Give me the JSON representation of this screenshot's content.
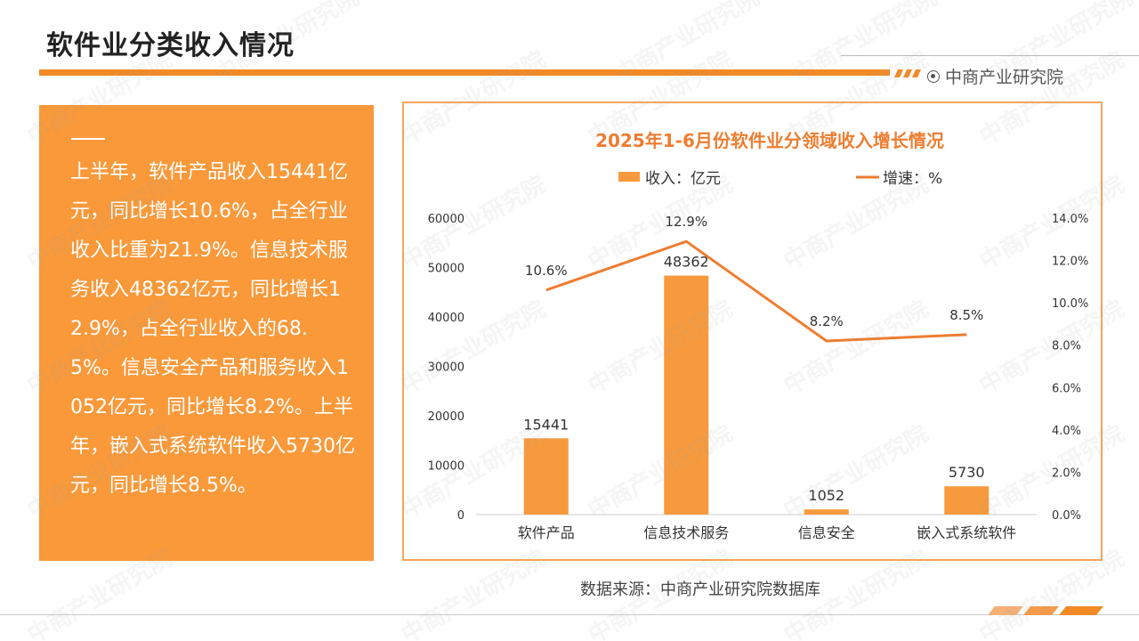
{
  "header": {
    "title": "软件业分类收入情况",
    "brand": "中商产业研究院"
  },
  "panel": {
    "text": "上半年，软件产品收入15441亿元，同比增长10.6%，占全行业收入比重为21.9%。信息技术服务收入48362亿元，同比增长12.9%，占全行业收入的68.5%。信息安全产品和服务收入1052亿元，同比增长8.2%。上半年，嵌入式系统软件收入5730亿元，同比增长8.5%。"
  },
  "footer": {
    "source": "数据来源：中商产业研究院数据库"
  },
  "watermark": "中商产业研究院",
  "colors": {
    "accent": "#f28a26",
    "panel": "#f9993a",
    "bar": "#f79a3e",
    "line": "#ee7d31",
    "title": "#ee7d31"
  },
  "chart_data": {
    "type": "bar+line",
    "title": "2025年1-6月份软件业分领域收入增长情况",
    "categories": [
      "软件产品",
      "信息技术服务",
      "信息安全",
      "嵌入式系统软件"
    ],
    "series": [
      {
        "name": "收入：亿元",
        "type": "bar",
        "axis": "left",
        "values": [
          15441,
          48362,
          1052,
          5730
        ],
        "labels": [
          "15441",
          "48362",
          "1052",
          "5730"
        ]
      },
      {
        "name": "增速：%",
        "type": "line",
        "axis": "right",
        "values": [
          10.6,
          12.9,
          8.2,
          8.5
        ],
        "labels": [
          "10.6%",
          "12.9%",
          "8.2%",
          "8.5%"
        ]
      }
    ],
    "ylim_left": [
      0,
      60000
    ],
    "yticks_left": [
      "0",
      "10000",
      "20000",
      "30000",
      "40000",
      "50000",
      "60000"
    ],
    "ylim_right": [
      0,
      14
    ],
    "yticks_right": [
      "0.0%",
      "2.0%",
      "4.0%",
      "6.0%",
      "8.0%",
      "10.0%",
      "12.0%",
      "14.0%"
    ],
    "legend": "top",
    "grid": false
  }
}
